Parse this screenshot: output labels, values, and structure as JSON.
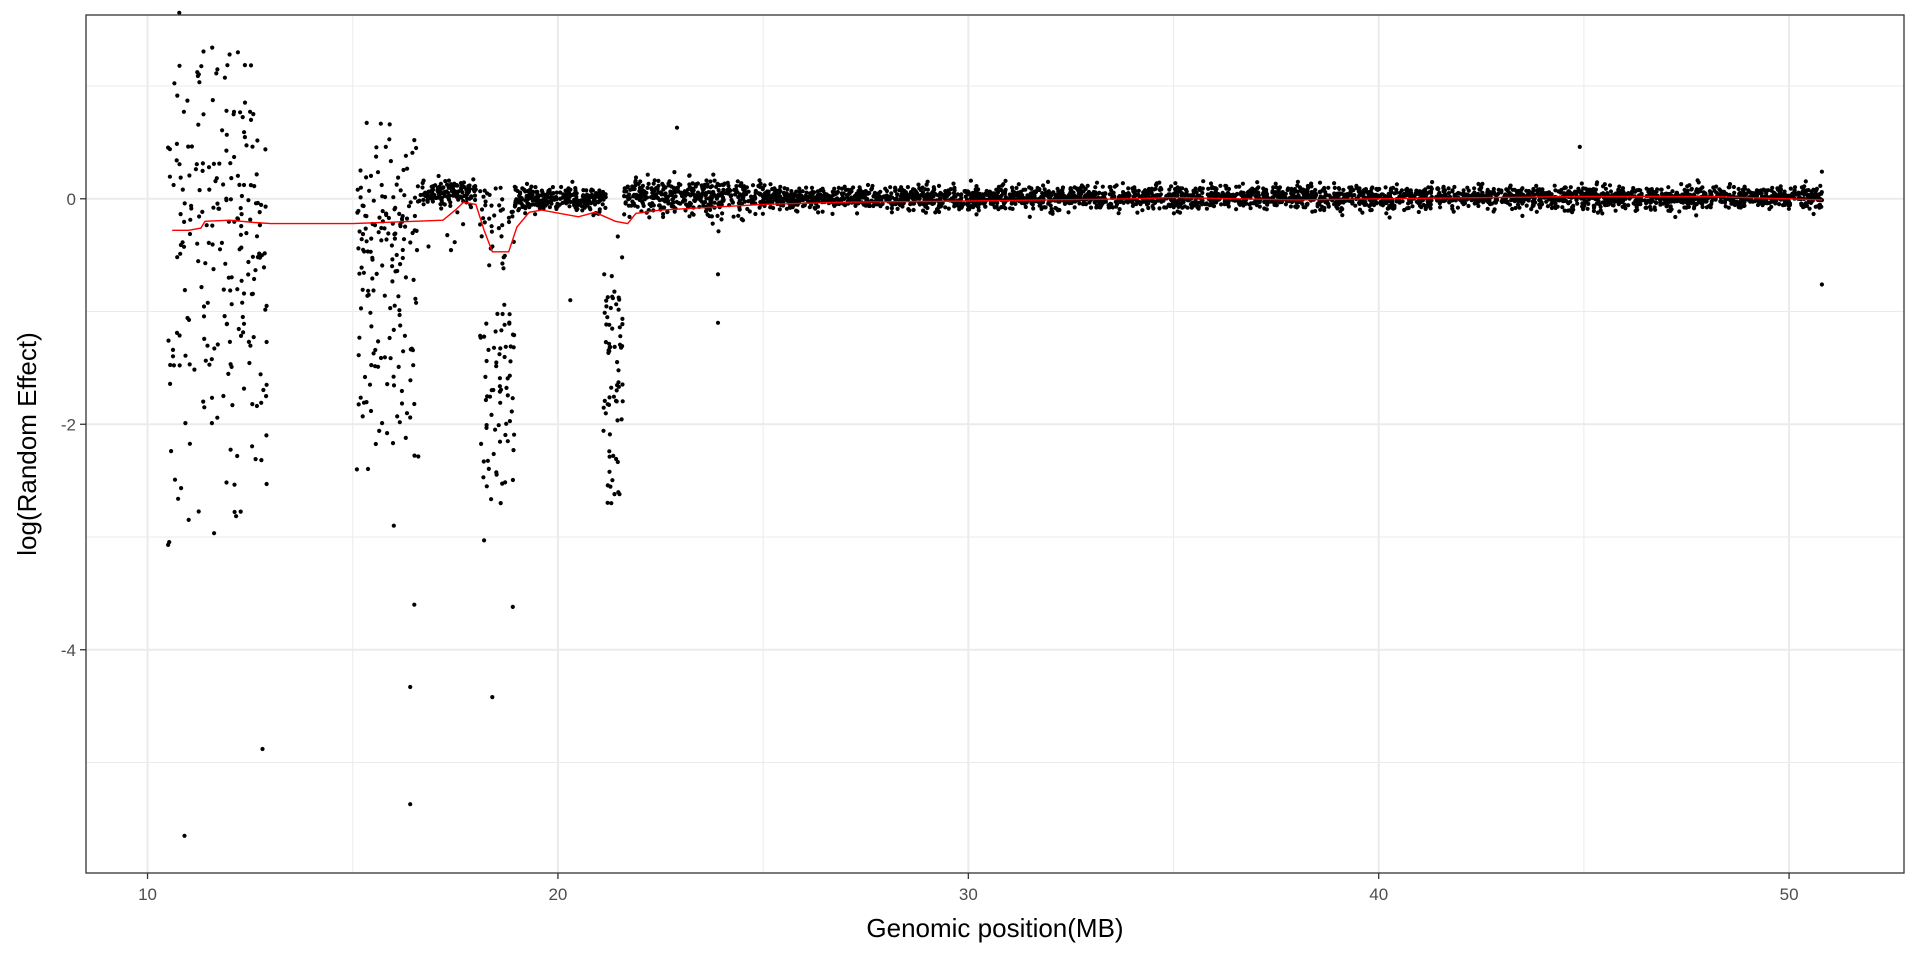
{
  "chart_data": {
    "type": "scatter",
    "title": "",
    "xlabel": "Genomic position(MB)",
    "ylabel": "log(Random Effect)",
    "xlim": [
      8.5,
      52.8
    ],
    "ylim": [
      -5.98,
      1.63
    ],
    "x_ticks": [
      10,
      20,
      30,
      40,
      50
    ],
    "x_tick_labels": [
      "10",
      "20",
      "30",
      "40",
      "50"
    ],
    "y_ticks": [
      0,
      -2,
      -4
    ],
    "y_tick_labels": [
      "0",
      "-2",
      "-4"
    ],
    "x_minor_ticks": [
      15,
      25,
      35,
      45
    ],
    "y_minor_ticks": [
      1,
      -1,
      -3,
      -5
    ],
    "grid": true,
    "legend": "none",
    "colors": {
      "points": "#000000",
      "trend": "#ff0000",
      "grid": "#ebebeb",
      "panel_border": "#333333"
    },
    "series": [
      {
        "type": "scatter",
        "segments": [
          {
            "x_start": 10.5,
            "x_end": 12.9,
            "center": 0.1,
            "noise": 0.75,
            "outlier_rate": 0.3,
            "outlier_min": -3.0,
            "outlier_max": -0.5,
            "count": 230
          },
          {
            "x_start": 15.1,
            "x_end": 16.6,
            "center": -0.15,
            "noise": 0.35,
            "outlier_rate": 0.4,
            "outlier_min": -2.4,
            "outlier_max": -0.3,
            "count": 170
          },
          {
            "x_start": 16.6,
            "x_end": 18.0,
            "center": 0.05,
            "noise": 0.06,
            "outlier_rate": 0.02,
            "outlier_min": -0.6,
            "outlier_max": -0.2,
            "count": 150
          },
          {
            "x_start": 18.1,
            "x_end": 18.95,
            "center": -0.2,
            "noise": 0.2,
            "outlier_rate": 0.6,
            "outlier_min": -2.7,
            "outlier_max": -0.9,
            "count": 110
          },
          {
            "x_start": 18.95,
            "x_end": 21.2,
            "center": 0.0,
            "noise": 0.05,
            "outlier_rate": 0.0,
            "outlier_min": 0,
            "outlier_max": 0,
            "count": 260
          },
          {
            "x_start": 21.1,
            "x_end": 21.6,
            "center": -0.9,
            "noise": 0.35,
            "outlier_rate": 0.7,
            "outlier_min": -2.7,
            "outlier_max": -0.8,
            "count": 70
          },
          {
            "x_start": 21.6,
            "x_end": 25.0,
            "center": 0.03,
            "noise": 0.08,
            "outlier_rate": 0.01,
            "outlier_min": -0.3,
            "outlier_max": 0.3,
            "count": 380
          },
          {
            "x_start": 25.0,
            "x_end": 50.8,
            "center": 0.01,
            "noise": 0.05,
            "outlier_rate": 0.0,
            "outlier_min": 0,
            "outlier_max": 0,
            "count": 3100
          }
        ],
        "notable_points": [
          {
            "x": 10.9,
            "y": -5.65
          },
          {
            "x": 10.5,
            "y": -3.07
          },
          {
            "x": 12.0,
            "y": 1.28
          },
          {
            "x": 12.8,
            "y": -4.88
          },
          {
            "x": 12.9,
            "y": -2.53
          },
          {
            "x": 12.9,
            "y": -1.65
          },
          {
            "x": 12.9,
            "y": -0.95
          },
          {
            "x": 12.9,
            "y": -1.27
          },
          {
            "x": 16.4,
            "y": -5.37
          },
          {
            "x": 16.4,
            "y": -4.33
          },
          {
            "x": 16.5,
            "y": -3.6
          },
          {
            "x": 16.0,
            "y": -2.9
          },
          {
            "x": 15.1,
            "y": -2.4
          },
          {
            "x": 16.4,
            "y": -1.94
          },
          {
            "x": 16.5,
            "y": -1.82
          },
          {
            "x": 15.9,
            "y": 0.66
          },
          {
            "x": 16.5,
            "y": 0.52
          },
          {
            "x": 18.4,
            "y": -4.42
          },
          {
            "x": 18.2,
            "y": -3.03
          },
          {
            "x": 18.9,
            "y": -3.62
          },
          {
            "x": 20.3,
            "y": -0.9
          },
          {
            "x": 21.3,
            "y": -2.7
          },
          {
            "x": 21.5,
            "y": -2.62
          },
          {
            "x": 22.9,
            "y": 0.63
          },
          {
            "x": 23.9,
            "y": -1.1
          },
          {
            "x": 23.9,
            "y": -0.67
          },
          {
            "x": 44.9,
            "y": 0.46
          },
          {
            "x": 50.8,
            "y": -0.76
          },
          {
            "x": 50.8,
            "y": 0.24
          }
        ]
      },
      {
        "type": "line",
        "x": [
          10.6,
          11.0,
          11.3,
          11.4,
          12.0,
          12.6,
          13.0,
          15.0,
          16.5,
          17.2,
          17.5,
          17.7,
          18.0,
          18.2,
          18.4,
          18.8,
          19.0,
          19.3,
          19.6,
          20.5,
          20.9,
          21.4,
          21.7,
          21.9,
          22.5,
          23.0,
          24.0,
          25.0,
          27.0,
          30.0,
          32.0,
          34.0,
          35.0,
          38.0,
          40.0,
          45.0,
          48.0,
          50.0,
          50.8
        ],
        "y": [
          -0.28,
          -0.28,
          -0.26,
          -0.2,
          -0.19,
          -0.21,
          -0.22,
          -0.22,
          -0.2,
          -0.19,
          -0.1,
          -0.03,
          -0.05,
          -0.28,
          -0.47,
          -0.47,
          -0.25,
          -0.12,
          -0.1,
          -0.16,
          -0.12,
          -0.2,
          -0.22,
          -0.13,
          -0.1,
          -0.09,
          -0.07,
          -0.05,
          -0.03,
          -0.02,
          -0.01,
          0.0,
          0.01,
          -0.01,
          0.0,
          0.02,
          0.02,
          0.0,
          -0.01
        ]
      }
    ]
  }
}
